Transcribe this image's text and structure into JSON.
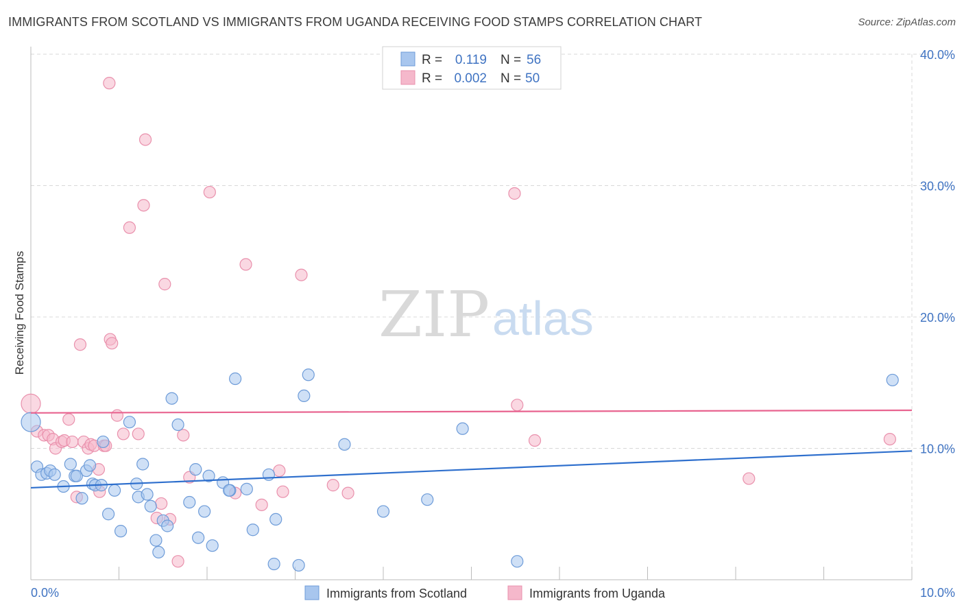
{
  "title": "IMMIGRANTS FROM SCOTLAND VS IMMIGRANTS FROM UGANDA RECEIVING FOOD STAMPS CORRELATION CHART",
  "source": "Source: ZipAtlas.com",
  "watermark": {
    "zip": "ZIP",
    "atlas": "atlas"
  },
  "colors": {
    "scotland_fill": "#a8c6ee",
    "scotland_stroke": "#6d9bd8",
    "scotland_line": "#2e6fcd",
    "uganda_fill": "#f5b8cb",
    "uganda_stroke": "#e990ac",
    "uganda_line": "#e8638f",
    "tick_label": "#3f73c2",
    "grid": "#d8d8d8"
  },
  "legend": {
    "r_label": "R =",
    "n_label": "N =",
    "scotland": {
      "r": "0.119",
      "n": "56"
    },
    "uganda": {
      "r": "0.002",
      "n": "50"
    }
  },
  "chart_data": {
    "type": "scatter",
    "title": "IMMIGRANTS FROM SCOTLAND VS IMMIGRANTS FROM UGANDA RECEIVING FOOD STAMPS CORRELATION CHART",
    "xlabel": "",
    "ylabel": "Receiving Food Stamps",
    "xlim": [
      0,
      10
    ],
    "ylim": [
      0,
      40
    ],
    "x_tick_labels": [
      "0.0%",
      "10.0%"
    ],
    "y_ticks": [
      10,
      20,
      30,
      40
    ],
    "y_tick_labels": [
      "10.0%",
      "20.0%",
      "30.0%",
      "40.0%"
    ],
    "grid": true,
    "legend_position": "top-center",
    "series": [
      {
        "name": "Immigrants from Scotland",
        "trend": {
          "x": [
            0,
            10
          ],
          "y": [
            7.0,
            9.8
          ]
        },
        "points": [
          [
            0.0,
            12.0
          ],
          [
            0.07,
            8.6
          ],
          [
            0.12,
            8.0
          ],
          [
            0.18,
            8.1
          ],
          [
            0.22,
            8.3
          ],
          [
            0.27,
            8.0
          ],
          [
            0.37,
            7.1
          ],
          [
            0.45,
            8.8
          ],
          [
            0.5,
            7.9
          ],
          [
            0.52,
            7.9
          ],
          [
            0.58,
            6.2
          ],
          [
            0.63,
            8.3
          ],
          [
            0.67,
            8.7
          ],
          [
            0.7,
            7.3
          ],
          [
            0.73,
            7.2
          ],
          [
            0.8,
            7.2
          ],
          [
            0.82,
            10.5
          ],
          [
            0.88,
            5.0
          ],
          [
            0.95,
            6.8
          ],
          [
            1.02,
            3.7
          ],
          [
            1.12,
            12.0
          ],
          [
            1.2,
            7.3
          ],
          [
            1.22,
            6.3
          ],
          [
            1.27,
            8.8
          ],
          [
            1.32,
            6.5
          ],
          [
            1.36,
            5.6
          ],
          [
            1.42,
            3.0
          ],
          [
            1.45,
            2.1
          ],
          [
            1.5,
            4.5
          ],
          [
            1.55,
            4.1
          ],
          [
            1.6,
            13.8
          ],
          [
            1.67,
            11.8
          ],
          [
            1.8,
            5.9
          ],
          [
            1.87,
            8.4
          ],
          [
            1.9,
            3.2
          ],
          [
            1.97,
            5.2
          ],
          [
            2.02,
            7.9
          ],
          [
            2.06,
            2.6
          ],
          [
            2.18,
            7.4
          ],
          [
            2.32,
            15.3
          ],
          [
            2.26,
            6.8
          ],
          [
            2.25,
            6.8
          ],
          [
            2.45,
            6.9
          ],
          [
            2.52,
            3.8
          ],
          [
            2.7,
            8.0
          ],
          [
            2.76,
            1.2
          ],
          [
            2.78,
            4.6
          ],
          [
            3.04,
            1.1
          ],
          [
            3.1,
            14.0
          ],
          [
            3.15,
            15.6
          ],
          [
            3.56,
            10.3
          ],
          [
            4.0,
            5.2
          ],
          [
            4.5,
            6.1
          ],
          [
            4.9,
            11.5
          ],
          [
            5.52,
            1.4
          ],
          [
            9.78,
            15.2
          ]
        ]
      },
      {
        "name": "Immigrants from Uganda",
        "trend": {
          "x": [
            0,
            10
          ],
          "y": [
            12.7,
            12.9
          ]
        },
        "points": [
          [
            0.0,
            13.4
          ],
          [
            0.07,
            11.3
          ],
          [
            0.15,
            11.0
          ],
          [
            0.2,
            11.0
          ],
          [
            0.25,
            10.7
          ],
          [
            0.28,
            10.0
          ],
          [
            0.35,
            10.5
          ],
          [
            0.38,
            10.6
          ],
          [
            0.43,
            12.2
          ],
          [
            0.47,
            10.5
          ],
          [
            0.52,
            6.3
          ],
          [
            0.56,
            17.9
          ],
          [
            0.6,
            10.5
          ],
          [
            0.65,
            10.0
          ],
          [
            0.68,
            10.3
          ],
          [
            0.72,
            10.2
          ],
          [
            0.77,
            8.4
          ],
          [
            0.78,
            6.7
          ],
          [
            0.83,
            10.2
          ],
          [
            0.85,
            10.2
          ],
          [
            0.89,
            37.8
          ],
          [
            0.9,
            18.3
          ],
          [
            0.92,
            18.0
          ],
          [
            0.98,
            12.5
          ],
          [
            1.05,
            11.1
          ],
          [
            1.12,
            26.8
          ],
          [
            1.22,
            11.1
          ],
          [
            1.28,
            28.5
          ],
          [
            1.3,
            33.5
          ],
          [
            1.43,
            4.7
          ],
          [
            1.48,
            5.8
          ],
          [
            1.52,
            22.5
          ],
          [
            1.58,
            4.6
          ],
          [
            1.67,
            1.4
          ],
          [
            1.73,
            11.0
          ],
          [
            1.8,
            7.8
          ],
          [
            2.03,
            29.5
          ],
          [
            2.32,
            6.6
          ],
          [
            2.44,
            24.0
          ],
          [
            2.62,
            5.7
          ],
          [
            2.82,
            8.3
          ],
          [
            2.86,
            6.7
          ],
          [
            3.07,
            23.2
          ],
          [
            3.43,
            7.2
          ],
          [
            3.6,
            6.6
          ],
          [
            5.49,
            29.4
          ],
          [
            5.52,
            13.3
          ],
          [
            5.72,
            10.6
          ],
          [
            8.15,
            7.7
          ],
          [
            9.75,
            10.7
          ]
        ]
      }
    ]
  },
  "bottom_legend": {
    "scotland": "Immigrants from Scotland",
    "uganda": "Immigrants from Uganda"
  }
}
